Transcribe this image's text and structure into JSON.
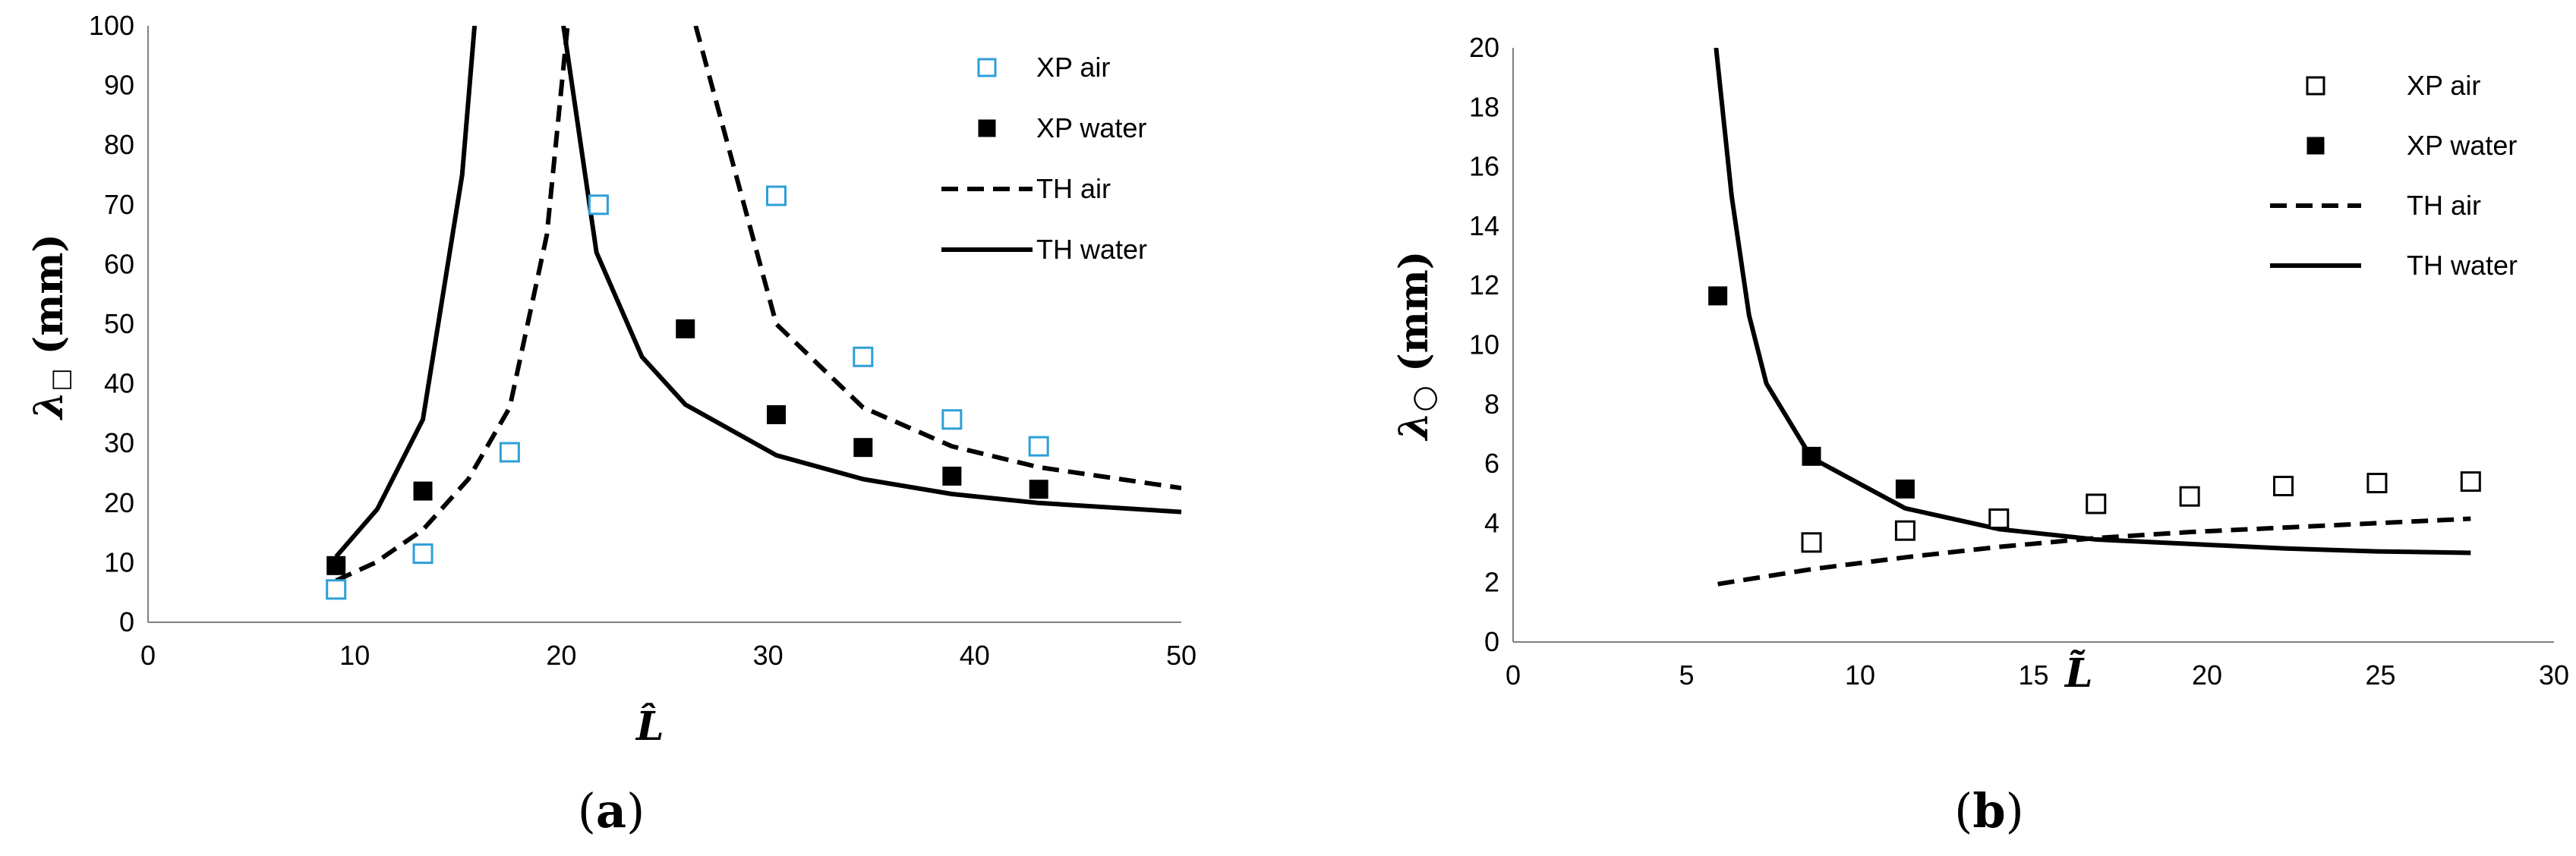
{
  "chart_data": [
    {
      "type": "scatter",
      "panel_label": "a",
      "caption_open": "(",
      "caption_close": ")",
      "xlabel": "L̂",
      "ylabel": "λ",
      "ylabel_sub": "□",
      "ylabel_units": " (mm)",
      "xlim": [
        0,
        50
      ],
      "ylim": [
        0,
        100
      ],
      "xticks": [
        0,
        10,
        20,
        30,
        40,
        50
      ],
      "yticks": [
        0,
        10,
        20,
        30,
        40,
        50,
        60,
        70,
        80,
        90,
        100
      ],
      "series": [
        {
          "name": "XP air",
          "kind": "marker-open",
          "color": "#2e9fd8",
          "x": [
            9.1,
            13.3,
            17.5,
            21.8,
            30.4,
            34.6,
            38.9,
            43.1
          ],
          "y": [
            5.5,
            11.5,
            28.5,
            70,
            71.5,
            44.5,
            34,
            29.5
          ]
        },
        {
          "name": "XP water",
          "kind": "marker-filled",
          "color": "#000000",
          "x": [
            9.1,
            13.3,
            26.0,
            30.4,
            34.6,
            38.9,
            43.1
          ],
          "y": [
            9.5,
            22,
            49.2,
            34.8,
            29.3,
            24.5,
            22.3
          ]
        },
        {
          "name": "TH air",
          "kind": "dashed",
          "color": "#000000",
          "segments": [
            {
              "x": [
                9.1,
                11,
                13.3,
                15.5,
                17.5,
                19.3,
                20.3
              ],
              "y": [
                7,
                10,
                15.5,
                24,
                36,
                65,
                100
              ]
            },
            {
              "x": [
                26.5,
                30.4,
                34.6,
                38.9,
                43.1,
                50
              ],
              "y": [
                100,
                50,
                36,
                29.5,
                26,
                22.5
              ]
            }
          ]
        },
        {
          "name": "TH water",
          "kind": "solid",
          "color": "#000000",
          "segments": [
            {
              "x": [
                9.1,
                11.1,
                13.3,
                15.2,
                15.8
              ],
              "y": [
                11,
                19,
                34,
                75,
                100
              ]
            },
            {
              "x": [
                20.1,
                21.7,
                23.9,
                26.0,
                30.4,
                34.6,
                38.9,
                43.1,
                50
              ],
              "y": [
                100,
                62,
                44.5,
                36.5,
                28,
                24,
                21.5,
                20,
                18.5
              ]
            }
          ]
        }
      ],
      "legend": [
        "XP air",
        "XP water",
        "TH air",
        "TH water"
      ],
      "legend_position": "top-right"
    },
    {
      "type": "scatter",
      "panel_label": "b",
      "caption_open": "(",
      "caption_close": ")",
      "xlabel": "L̃",
      "ylabel": "λ",
      "ylabel_sub": "○",
      "ylabel_units": " (mm)",
      "xlim": [
        0,
        30
      ],
      "ylim": [
        0,
        20
      ],
      "xticks": [
        0,
        5,
        10,
        15,
        20,
        25,
        30
      ],
      "yticks": [
        0,
        2,
        4,
        6,
        8,
        10,
        12,
        14,
        16,
        18,
        20
      ],
      "series": [
        {
          "name": "XP air",
          "kind": "marker-open",
          "color": "#000000",
          "x": [
            8.6,
            11.3,
            14.0,
            16.8,
            19.5,
            22.2,
            24.9,
            27.6
          ],
          "y": [
            3.35,
            3.75,
            4.15,
            4.65,
            4.9,
            5.25,
            5.35,
            5.4
          ]
        },
        {
          "name": "XP water",
          "kind": "marker-filled",
          "color": "#000000",
          "x": [
            5.9,
            8.6,
            11.3
          ],
          "y": [
            11.65,
            6.25,
            5.15
          ]
        },
        {
          "name": "TH air",
          "kind": "dashed",
          "color": "#000000",
          "segments": [
            {
              "x": [
                5.9,
                8.6,
                11.3,
                14,
                16.8,
                19.5,
                22.2,
                24.9,
                27.6
              ],
              "y": [
                1.95,
                2.45,
                2.85,
                3.2,
                3.5,
                3.7,
                3.85,
                4.0,
                4.15
              ]
            }
          ]
        },
        {
          "name": "TH water",
          "kind": "solid",
          "color": "#000000",
          "segments": [
            {
              "x": [
                5.85,
                6.3,
                6.8,
                7.3,
                8.6,
                11.3,
                14,
                16.8,
                19.5,
                22.2,
                24.9,
                27.6
              ],
              "y": [
                20,
                15,
                11,
                8.7,
                6.2,
                4.5,
                3.8,
                3.45,
                3.3,
                3.15,
                3.05,
                3.0
              ]
            }
          ]
        }
      ],
      "legend": [
        "XP air",
        "XP water",
        "TH air",
        "TH water"
      ],
      "legend_position": "top-right"
    }
  ]
}
